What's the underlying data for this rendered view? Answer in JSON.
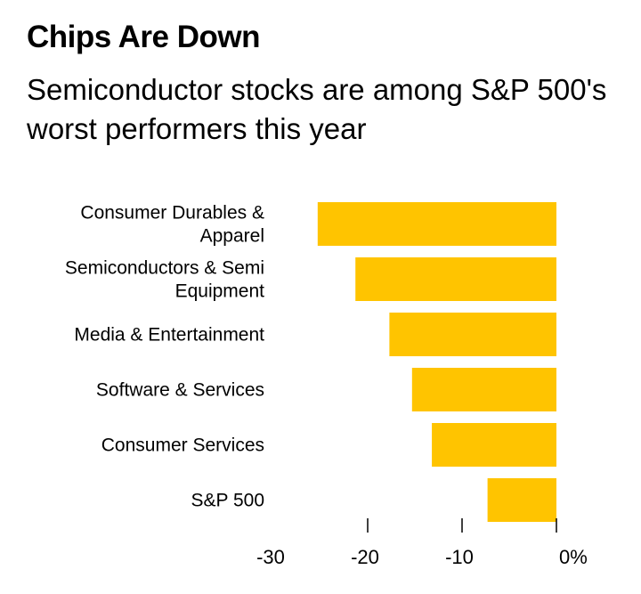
{
  "header": {
    "title": "Chips Are Down",
    "subtitle": "Semiconductor stocks are among S&P 500's worst performers this year"
  },
  "chart_data": {
    "type": "bar",
    "orientation": "horizontal",
    "title": "Chips Are Down",
    "subtitle": "Semiconductor stocks are among S&P 500's worst performers this year",
    "categories": [
      [
        "Consumer Durables &",
        "Apparel"
      ],
      [
        "Semiconductors & Semi",
        "Equipment"
      ],
      [
        "Media & Entertainment"
      ],
      [
        "Software & Services"
      ],
      [
        "Consumer Services"
      ],
      [
        "S&P 500"
      ]
    ],
    "values": [
      -25.3,
      -21.3,
      -17.7,
      -15.3,
      -13.2,
      -7.3
    ],
    "xlim": [
      -30,
      0
    ],
    "ticks": [
      {
        "value": -30,
        "label": "-30"
      },
      {
        "value": -20,
        "label": "-20"
      },
      {
        "value": -10,
        "label": "-10"
      },
      {
        "value": 0,
        "label": "0%"
      }
    ],
    "bar_color": "#FFC400",
    "grid": false,
    "legend": "none"
  }
}
